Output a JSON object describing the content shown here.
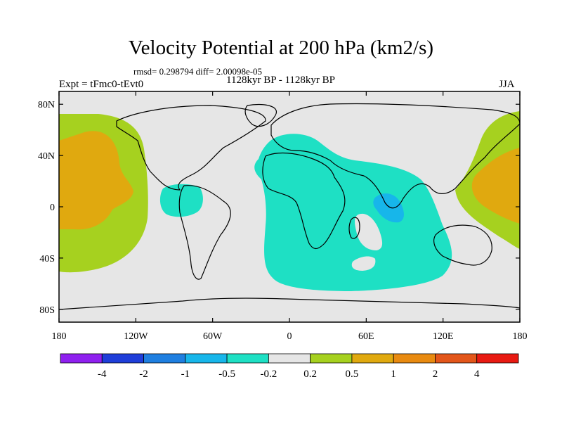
{
  "title": "Velocity Potential at 200 hPa (km2/s)",
  "stats": "rmsd= 0.298794 diff= 2.00098e-05",
  "period": "1128kyr BP - 1128kyr BP",
  "experiment": "Expt = tFmc0-tEvt0",
  "season": "JJA",
  "map": {
    "lon_range": [
      -180,
      180
    ],
    "lat_range": [
      -90,
      90
    ],
    "lat_ticks": [
      {
        "v": 80,
        "label": "80N"
      },
      {
        "v": 40,
        "label": "40N"
      },
      {
        "v": 0,
        "label": "0"
      },
      {
        "v": -40,
        "label": "40S"
      },
      {
        "v": -80,
        "label": "80S"
      }
    ],
    "lon_ticks": [
      {
        "v": -180,
        "label": "180"
      },
      {
        "v": -120,
        "label": "120W"
      },
      {
        "v": -60,
        "label": "60W"
      },
      {
        "v": 0,
        "label": "0"
      },
      {
        "v": 60,
        "label": "60E"
      },
      {
        "v": 120,
        "label": "120E"
      },
      {
        "v": 180,
        "label": "180"
      }
    ],
    "background_color": "#e6e6e6",
    "regions": [
      {
        "name": "pacific-west-positive",
        "level": "0.2 to 0.5",
        "color": "#a6d11f"
      },
      {
        "name": "pacific-west-core",
        "level": "0.5 to 1",
        "color": "#e0a90f"
      },
      {
        "name": "pacific-east-positive",
        "level": "0.2 to 0.5",
        "color": "#a6d11f"
      },
      {
        "name": "pacific-east-core",
        "level": "0.5 to 1",
        "color": "#e0a90f"
      },
      {
        "name": "atlantic-indian-negative",
        "level": "-0.5 to -0.2",
        "color": "#1ee0c4"
      },
      {
        "name": "amazon-negative",
        "level": "-0.5 to -0.2",
        "color": "#1ee0c4"
      },
      {
        "name": "indian-ocean-core",
        "level": "-1 to -0.5",
        "color": "#17b6ea"
      }
    ]
  },
  "colorbar": {
    "colors": [
      "#8f20ef",
      "#1f3ed9",
      "#1f7fe0",
      "#17b6ea",
      "#1ee0c4",
      "#e6e6e6",
      "#a6d11f",
      "#e0a90f",
      "#e88a10",
      "#e3561a",
      "#e81a12"
    ],
    "labels": [
      "-4",
      "-2",
      "-1",
      "-0.5",
      "-0.2",
      "0.2",
      "0.5",
      "1",
      "2",
      "4"
    ]
  }
}
